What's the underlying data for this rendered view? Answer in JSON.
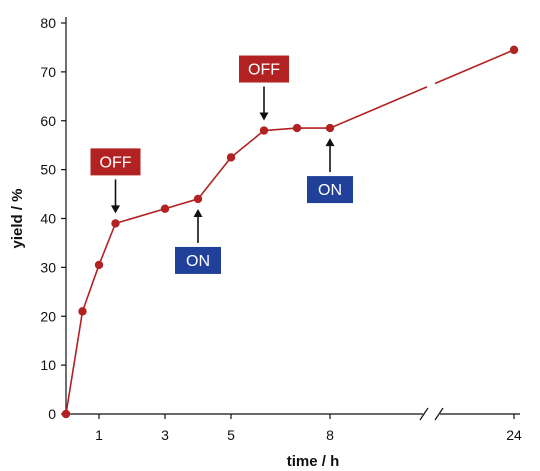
{
  "chart_data": {
    "type": "line",
    "title": "",
    "xlabel": "time / h",
    "ylabel": "yield / %",
    "x_tick_labels": [
      "1",
      "3",
      "5",
      "8",
      "24"
    ],
    "y_tick_labels": [
      "0",
      "10",
      "20",
      "30",
      "40",
      "50",
      "60",
      "70",
      "80"
    ],
    "ylim": [
      0,
      80
    ],
    "x_axis_break": "between 8 and 24",
    "grid": false,
    "legend": "none",
    "series": [
      {
        "color": "#b22222",
        "points": [
          {
            "x": 0,
            "y": 0
          },
          {
            "x": 0.5,
            "y": 21
          },
          {
            "x": 1,
            "y": 30.5
          },
          {
            "x": 1.5,
            "y": 39
          },
          {
            "x": 3,
            "y": 42
          },
          {
            "x": 4,
            "y": 44
          },
          {
            "x": 5,
            "y": 52.5
          },
          {
            "x": 6,
            "y": 58
          },
          {
            "x": 7,
            "y": 58.5
          },
          {
            "x": 8,
            "y": 58.5
          },
          {
            "x": 24,
            "y": 74.5
          }
        ]
      }
    ],
    "annotations": [
      {
        "text": "OFF",
        "x": 1.5,
        "y": 39,
        "kind": "off",
        "placement": "above"
      },
      {
        "text": "ON",
        "x": 4,
        "y": 44,
        "kind": "on",
        "placement": "below"
      },
      {
        "text": "OFF",
        "x": 6,
        "y": 58,
        "kind": "off",
        "placement": "above"
      },
      {
        "text": "ON",
        "x": 8,
        "y": 58.5,
        "kind": "on",
        "placement": "below"
      }
    ],
    "colors": {
      "line": "#b22222",
      "off_box": "#b22222",
      "on_box": "#21409a",
      "axis": "#111111"
    }
  }
}
